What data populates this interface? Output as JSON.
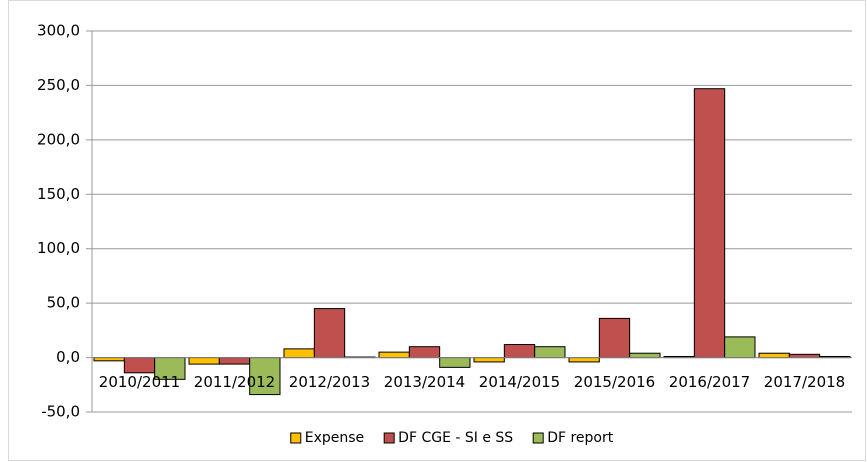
{
  "chart_data": {
    "type": "bar",
    "categories": [
      "2010/2011",
      "2011/2012",
      "2012/2013",
      "2013/2014",
      "2014/2015",
      "2015/2016",
      "2016/2017",
      "2017/2018"
    ],
    "series": [
      {
        "name": "Expense",
        "color": "#ffc000",
        "values": [
          -3,
          -6,
          8,
          5,
          -4,
          -4,
          1,
          4
        ]
      },
      {
        "name": "DF CGE - SI e SS",
        "color": "#c0504d",
        "values": [
          -14,
          -6,
          45,
          10,
          12,
          36,
          247,
          3
        ]
      },
      {
        "name": "DF report",
        "color": "#9bbb59",
        "values": [
          -20,
          -34,
          0.5,
          -9,
          10,
          4,
          19,
          1
        ]
      }
    ],
    "ylim": [
      -50,
      300
    ],
    "yticks": [
      {
        "value": -50,
        "label": "-50,0"
      },
      {
        "value": 0,
        "label": "0,0"
      },
      {
        "value": 50,
        "label": "50,0"
      },
      {
        "value": 100,
        "label": "100,0"
      },
      {
        "value": 150,
        "label": "150,0"
      },
      {
        "value": 200,
        "label": "200,0"
      },
      {
        "value": 250,
        "label": "250,0"
      },
      {
        "value": 300,
        "label": "300,0"
      }
    ],
    "grid": true,
    "legend": "bottom"
  }
}
